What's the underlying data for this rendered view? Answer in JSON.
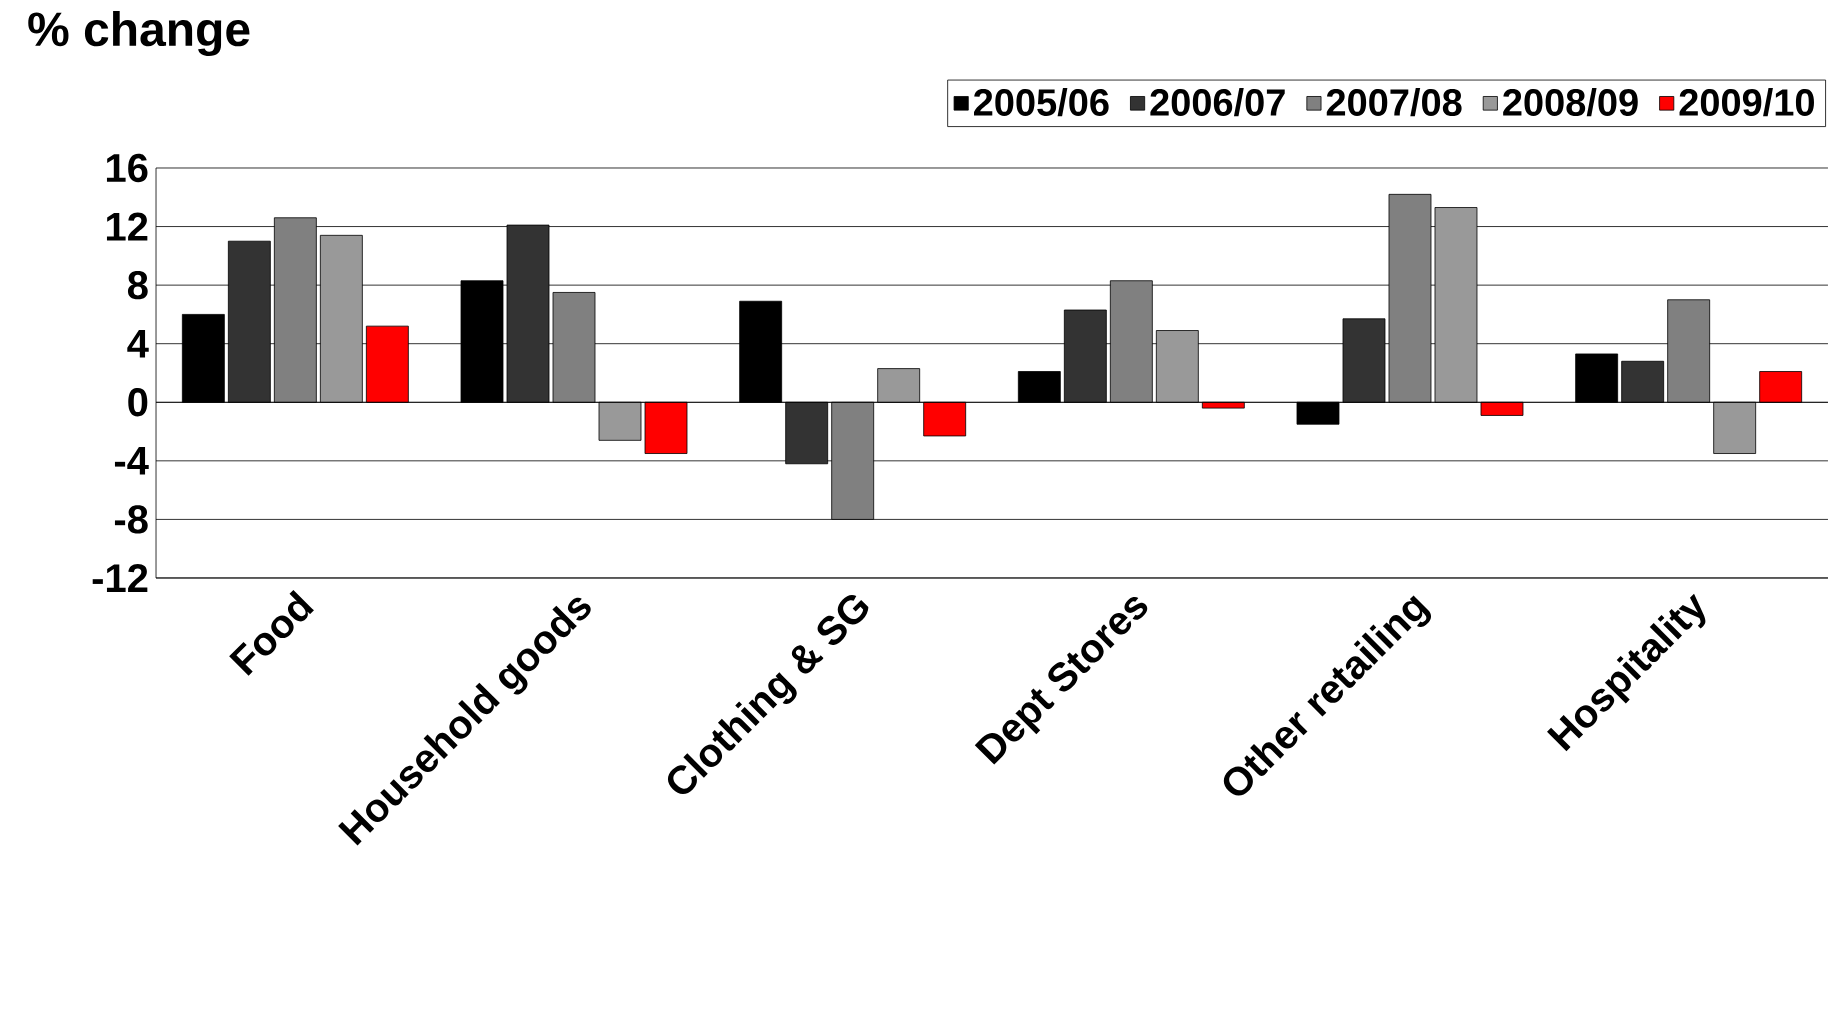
{
  "chart_data": {
    "type": "bar",
    "title": "% change",
    "categories": [
      "Food",
      "Household goods",
      "Clothing & SG",
      "Dept Stores",
      "Other retailing",
      "Hospitality"
    ],
    "series": [
      {
        "name": "2005/06",
        "color": "#000000",
        "values": [
          6.0,
          8.3,
          6.9,
          2.1,
          -1.5,
          3.3
        ]
      },
      {
        "name": "2006/07",
        "color": "#333333",
        "values": [
          11.0,
          12.1,
          -4.2,
          6.3,
          5.7,
          2.8
        ]
      },
      {
        "name": "2007/08",
        "color": "#808080",
        "values": [
          12.6,
          7.5,
          -8.0,
          8.3,
          14.2,
          7.0
        ]
      },
      {
        "name": "2008/09",
        "color": "#999999",
        "values": [
          11.4,
          -2.6,
          2.3,
          4.9,
          13.3,
          -3.5
        ]
      },
      {
        "name": "2009/10",
        "color": "#ff0000",
        "values": [
          5.2,
          -3.5,
          -2.3,
          -0.4,
          -0.9,
          2.1
        ]
      }
    ],
    "ylim": [
      -12,
      16
    ],
    "yticks": [
      -12,
      -8,
      -4,
      0,
      4,
      8,
      12,
      16
    ],
    "grid": "y",
    "legend": "top right"
  }
}
